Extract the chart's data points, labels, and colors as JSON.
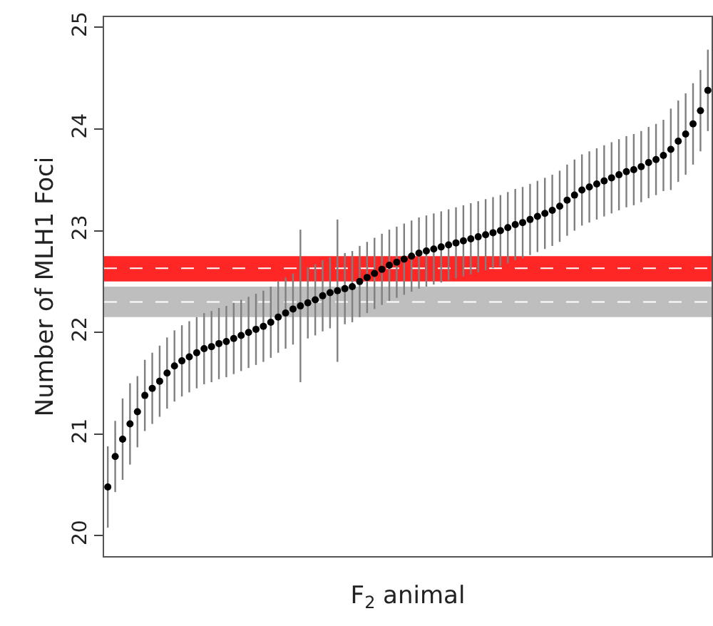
{
  "chart_data": {
    "type": "scatter",
    "xlabel": "F$_{2}$ animal",
    "ylabel": "Number of MLH1 Foci",
    "categories": [
      null,
      null,
      null,
      null,
      null,
      null,
      null,
      null,
      null,
      null,
      null,
      null,
      null,
      null,
      null,
      null,
      null,
      null,
      null,
      null,
      null,
      null,
      null,
      null,
      null,
      null,
      null,
      null,
      null,
      null,
      null,
      null,
      null,
      null,
      null,
      null,
      null,
      null,
      null,
      null,
      null,
      null,
      null,
      null,
      null,
      null,
      null,
      null,
      null,
      null,
      null,
      null,
      null,
      null,
      null,
      null,
      null,
      null,
      null,
      null,
      null,
      null,
      null,
      null,
      null,
      null,
      null,
      null,
      null,
      null,
      null,
      null,
      null,
      null,
      null,
      null,
      null,
      null,
      null,
      null,
      null,
      null
    ],
    "series": [
      {
        "color": "#000000",
        "values": [
          20.48,
          20.78,
          20.95,
          21.1,
          21.22,
          21.38,
          21.45,
          21.52,
          21.6,
          21.67,
          21.72,
          21.76,
          21.8,
          21.84,
          21.86,
          21.89,
          21.91,
          21.94,
          21.97,
          22.0,
          22.03,
          22.06,
          22.1,
          22.15,
          22.19,
          22.23,
          22.26,
          22.29,
          22.32,
          22.36,
          22.39,
          22.41,
          22.43,
          22.45,
          22.5,
          22.54,
          22.58,
          22.62,
          22.66,
          22.69,
          22.72,
          22.75,
          22.78,
          22.8,
          22.82,
          22.84,
          22.86,
          22.88,
          22.9,
          22.92,
          22.94,
          22.96,
          22.98,
          23.0,
          23.03,
          23.06,
          23.08,
          23.11,
          23.14,
          23.17,
          23.2,
          23.24,
          23.3,
          23.35,
          23.4,
          23.43,
          23.46,
          23.49,
          23.52,
          23.55,
          23.58,
          23.6,
          23.63,
          23.67,
          23.7,
          23.74,
          23.8,
          23.88,
          23.95,
          24.05,
          24.18,
          24.38
        ],
        "errors": [
          0.4,
          0.35,
          0.4,
          0.4,
          0.35,
          0.35,
          0.35,
          0.35,
          0.35,
          0.35,
          0.35,
          0.35,
          0.35,
          0.35,
          0.35,
          0.35,
          0.35,
          0.35,
          0.35,
          0.35,
          0.35,
          0.35,
          0.35,
          0.35,
          0.35,
          0.35,
          0.75,
          0.35,
          0.35,
          0.35,
          0.35,
          0.7,
          0.35,
          0.35,
          0.35,
          0.35,
          0.35,
          0.35,
          0.35,
          0.35,
          0.35,
          0.35,
          0.35,
          0.35,
          0.35,
          0.35,
          0.35,
          0.35,
          0.35,
          0.35,
          0.35,
          0.35,
          0.35,
          0.35,
          0.35,
          0.35,
          0.35,
          0.35,
          0.35,
          0.35,
          0.35,
          0.35,
          0.35,
          0.35,
          0.35,
          0.35,
          0.35,
          0.35,
          0.35,
          0.35,
          0.35,
          0.35,
          0.35,
          0.35,
          0.35,
          0.35,
          0.4,
          0.4,
          0.4,
          0.4,
          0.4,
          0.4
        ]
      }
    ],
    "ylim": [
      19.8,
      25.1
    ],
    "yticks": [
      20,
      21,
      22,
      23,
      24,
      25
    ],
    "marker": "circle",
    "grid": false,
    "bands": [
      {
        "axis": "y",
        "from": 22.5,
        "to": 22.75,
        "color": "#ff0000"
      },
      {
        "axis": "y",
        "from": 22.15,
        "to": 22.45,
        "color": "#b3b3b3"
      }
    ],
    "ref_lines": [
      {
        "axis": "y",
        "value": 22.63,
        "color": "#ffffff",
        "line_style": "dashed"
      },
      {
        "axis": "y",
        "value": 22.3,
        "color": "#ffffff",
        "line_style": "dashed"
      }
    ]
  }
}
